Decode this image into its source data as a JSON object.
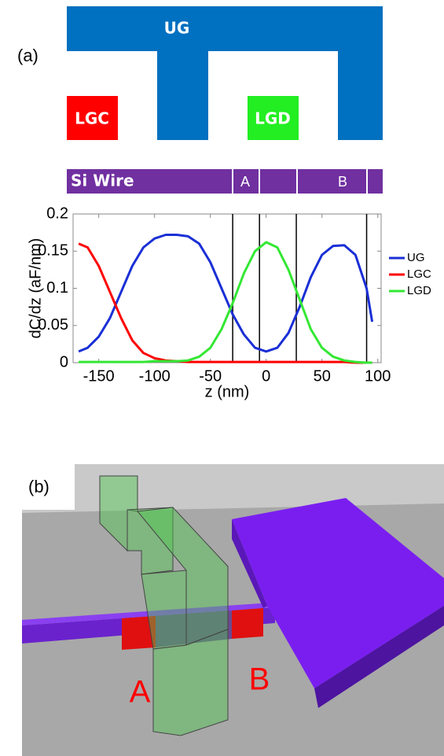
{
  "panel_labels": [
    "(a)",
    "(b)"
  ],
  "gate_diagram": {
    "gates": [
      "UG",
      "LGC",
      "LGD"
    ],
    "wire": {
      "label": "Si Wire",
      "regions": [
        "A",
        "B"
      ]
    }
  },
  "chart_data": {
    "type": "line",
    "xlabel": "z (nm)",
    "ylabel": "dC/dz (aF/nm)",
    "x": [
      -168,
      -160,
      -150,
      -140,
      -130,
      -120,
      -110,
      -100,
      -90,
      -80,
      -70,
      -60,
      -50,
      -40,
      -30,
      -20,
      -10,
      0,
      10,
      20,
      30,
      40,
      50,
      60,
      70,
      80,
      90,
      95
    ],
    "series": [
      {
        "name": "UG",
        "color": "#1a2fd6",
        "values": [
          0.015,
          0.02,
          0.035,
          0.06,
          0.095,
          0.13,
          0.155,
          0.167,
          0.172,
          0.172,
          0.17,
          0.16,
          0.135,
          0.1,
          0.065,
          0.038,
          0.02,
          0.015,
          0.02,
          0.04,
          0.075,
          0.115,
          0.145,
          0.157,
          0.158,
          0.145,
          0.1,
          0.055
        ]
      },
      {
        "name": "LGC",
        "color": "#ff0000",
        "values": [
          0.16,
          0.155,
          0.13,
          0.095,
          0.06,
          0.03,
          0.013,
          0.006,
          0.003,
          0.002,
          0.001,
          0.001,
          0.001,
          0.001,
          0.001,
          0.001,
          0.001,
          0.001,
          0.001,
          0.001,
          0.001,
          0.001,
          0.001,
          0.001,
          0.001,
          0,
          0,
          0
        ]
      },
      {
        "name": "LGD",
        "color": "#33e833",
        "values": [
          0.001,
          0.001,
          0.001,
          0.001,
          0.001,
          0.001,
          0.001,
          0.002,
          0.002,
          0.002,
          0.003,
          0.008,
          0.02,
          0.045,
          0.08,
          0.12,
          0.15,
          0.162,
          0.155,
          0.125,
          0.085,
          0.045,
          0.02,
          0.008,
          0.003,
          0.001,
          0,
          0
        ]
      }
    ],
    "region_boundaries": [
      -30,
      -6,
      27,
      90
    ],
    "xlim": [
      -173,
      103
    ],
    "ylim": [
      0,
      0.2
    ],
    "xticks": [
      -150,
      -100,
      -50,
      0,
      50,
      100
    ],
    "yticks": [
      0,
      0.05,
      0.1,
      0.15,
      0.2
    ],
    "legend": "right"
  },
  "render_3d": {
    "regions": [
      "A",
      "B"
    ]
  }
}
